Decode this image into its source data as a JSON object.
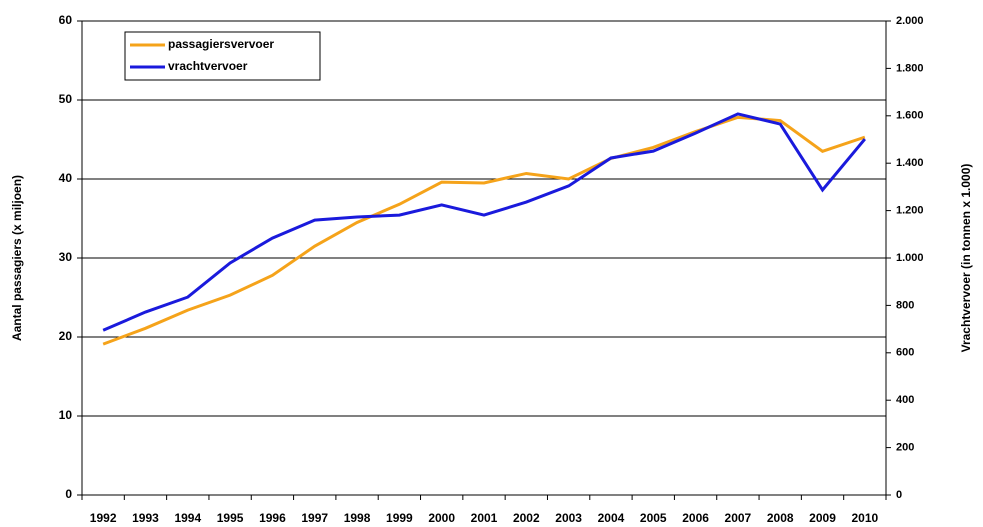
{
  "chart_data": {
    "type": "line",
    "categories": [
      "1992",
      "1993",
      "1994",
      "1995",
      "1996",
      "1997",
      "1998",
      "1999",
      "2000",
      "2001",
      "2002",
      "2003",
      "2004",
      "2005",
      "2006",
      "2007",
      "2008",
      "2009",
      "2010"
    ],
    "series": [
      {
        "name": "passagiersvervoer",
        "color": "#f5a31a",
        "axis": "y",
        "values": [
          19.1,
          21.1,
          23.4,
          25.3,
          27.8,
          31.5,
          34.5,
          36.8,
          39.6,
          39.5,
          40.7,
          40.0,
          42.6,
          44.0,
          46.0,
          47.8,
          47.4,
          43.5,
          45.3
        ]
      },
      {
        "name": "vrachtvervoer",
        "color": "#1a1adc",
        "axis": "y2",
        "values": [
          695,
          772,
          835,
          979,
          1084,
          1160,
          1173,
          1181,
          1224,
          1181,
          1236,
          1304,
          1422,
          1451,
          1527,
          1608,
          1565,
          1287,
          1502
        ]
      }
    ],
    "ylabel": "Aantal passagiers (x miljoen)",
    "y2label": "Vrachtvervoer (in tonnen x 1.000)",
    "ylim": [
      0,
      60
    ],
    "yticks": [
      0,
      10,
      20,
      30,
      40,
      50,
      60
    ],
    "y2lim": [
      0,
      2000
    ],
    "y2ticks": [
      0,
      200,
      400,
      600,
      800,
      {
        "value": 1000,
        "label": "1.000"
      },
      {
        "value": 1200,
        "label": "1.200"
      },
      {
        "value": 1400,
        "label": "1.400"
      },
      {
        "value": 1600,
        "label": "1.600"
      },
      {
        "value": 1800,
        "label": "1.800"
      },
      {
        "value": 2000,
        "label": "2.000"
      }
    ],
    "grid": true,
    "legend": "upper left"
  }
}
